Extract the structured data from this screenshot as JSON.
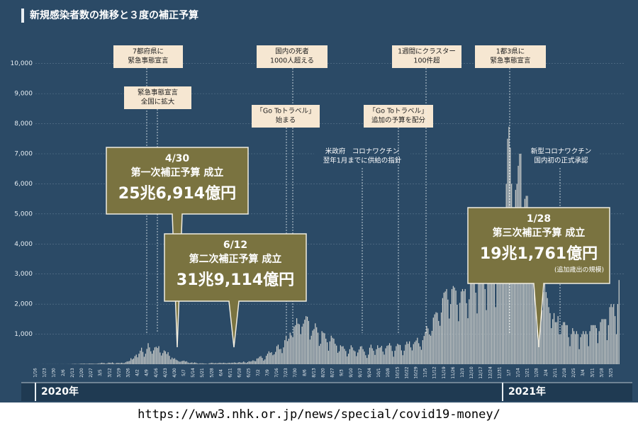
{
  "chart_data": {
    "type": "bar",
    "title": "新規感染者数の推移と３度の補正予算",
    "color": "#d4d4cf",
    "ylim": [
      0,
      10700
    ],
    "yticks": [
      {
        "value": 1000,
        "label": "1,000"
      },
      {
        "value": 2000,
        "label": "2,000"
      },
      {
        "value": 3000,
        "label": "3,000"
      },
      {
        "value": 4000,
        "label": "4,000"
      },
      {
        "value": 5000,
        "label": "5,000"
      },
      {
        "value": 6000,
        "label": "6,000"
      },
      {
        "value": 7000,
        "label": "7,000"
      },
      {
        "value": 8000,
        "label": "8,000"
      },
      {
        "value": 9000,
        "label": "9,000"
      },
      {
        "value": 10000,
        "label": "10,000"
      }
    ],
    "grid": true,
    "years": [
      "2020年",
      "2021年"
    ],
    "categories": [
      "1/16",
      null,
      null,
      null,
      null,
      null,
      null,
      "1/23",
      null,
      null,
      null,
      null,
      null,
      null,
      "1/30",
      null,
      null,
      null,
      null,
      null,
      null,
      "2/6",
      null,
      null,
      null,
      null,
      null,
      null,
      "2/13",
      null,
      null,
      null,
      null,
      null,
      null,
      "2/20",
      null,
      null,
      null,
      null,
      null,
      null,
      "2/27",
      null,
      null,
      null,
      null,
      null,
      null,
      "3/5",
      null,
      null,
      null,
      null,
      null,
      null,
      "3/12",
      null,
      null,
      null,
      null,
      null,
      null,
      "3/19",
      null,
      null,
      null,
      null,
      null,
      null,
      "3/26",
      null,
      null,
      null,
      null,
      null,
      null,
      "4/2",
      null,
      null,
      null,
      null,
      null,
      null,
      "4/9",
      null,
      null,
      null,
      null,
      null,
      null,
      "4/16",
      null,
      null,
      null,
      null,
      null,
      null,
      "4/23",
      null,
      null,
      null,
      null,
      null,
      null,
      "4/30",
      null,
      null,
      null,
      null,
      null,
      null,
      "5/7",
      null,
      null,
      null,
      null,
      null,
      null,
      "5/14",
      null,
      null,
      null,
      null,
      null,
      null,
      "5/21",
      null,
      null,
      null,
      null,
      null,
      null,
      "5/28",
      null,
      null,
      null,
      null,
      null,
      null,
      "6/4",
      null,
      null,
      null,
      null,
      null,
      null,
      "6/11",
      null,
      null,
      null,
      null,
      null,
      null,
      "6/18",
      null,
      null,
      null,
      null,
      null,
      null,
      "6/25",
      null,
      null,
      null,
      null,
      null,
      null,
      "7/2",
      null,
      null,
      null,
      null,
      null,
      null,
      "7/9",
      null,
      null,
      null,
      null,
      null,
      null,
      "7/16",
      null,
      null,
      null,
      null,
      null,
      null,
      "7/23",
      null,
      null,
      null,
      null,
      null,
      null,
      "7/30",
      null,
      null,
      null,
      null,
      null,
      null,
      "8/6",
      null,
      null,
      null,
      null,
      null,
      null,
      "8/13",
      null,
      null,
      null,
      null,
      null,
      null,
      "8/20",
      null,
      null,
      null,
      null,
      null,
      null,
      "8/27",
      null,
      null,
      null,
      null,
      null,
      null,
      "9/3",
      null,
      null,
      null,
      null,
      null,
      null,
      "9/10",
      null,
      null,
      null,
      null,
      null,
      null,
      "9/17",
      null,
      null,
      null,
      null,
      null,
      null,
      "9/24",
      null,
      null,
      null,
      null,
      null,
      null,
      "10/1",
      null,
      null,
      null,
      null,
      null,
      null,
      "10/8",
      null,
      null,
      null,
      null,
      null,
      null,
      "10/15",
      null,
      null,
      null,
      null,
      null,
      null,
      "10/22",
      null,
      null,
      null,
      null,
      null,
      null,
      "10/29",
      null,
      null,
      null,
      null,
      null,
      null,
      "11/5",
      null,
      null,
      null,
      null,
      null,
      null,
      "11/12",
      null,
      null,
      null,
      null,
      null,
      null,
      "11/19",
      null,
      null,
      null,
      null,
      null,
      null,
      "11/26",
      null,
      null,
      null,
      null,
      null,
      null,
      "12/3",
      null,
      null,
      null,
      null,
      null,
      null,
      "12/10",
      null,
      null,
      null,
      null,
      null,
      null,
      "12/17",
      null,
      null,
      null,
      null,
      null,
      null,
      "12/24",
      null,
      null,
      null,
      null,
      null,
      null,
      "12/31",
      null,
      null,
      null,
      null,
      null,
      null,
      "1/7",
      null,
      null,
      null,
      null,
      null,
      null,
      "1/14",
      null,
      null,
      null,
      null,
      null,
      null,
      "1/21",
      null,
      null,
      null,
      null,
      null,
      null,
      "1/28",
      null,
      null,
      null,
      null,
      null,
      null,
      "2/4",
      null,
      null,
      null,
      null,
      null,
      null,
      "2/11",
      null,
      null,
      null,
      null,
      null,
      null,
      "2/18",
      null,
      null,
      null,
      null,
      null,
      null,
      "2/25",
      null,
      null,
      null,
      null,
      null,
      null,
      "3/4",
      null,
      null,
      null,
      null,
      null,
      null,
      "3/11",
      null,
      null,
      null,
      null,
      null,
      null,
      "3/18",
      null,
      null,
      null,
      null,
      null,
      null,
      "3/25",
      null,
      null,
      null,
      null,
      null,
      null
    ],
    "values": [
      0,
      0,
      0,
      1,
      0,
      1,
      2,
      0,
      1,
      2,
      1,
      2,
      1,
      2,
      1,
      2,
      1,
      2,
      0,
      1,
      2,
      2,
      1,
      1,
      2,
      3,
      2,
      4,
      8,
      10,
      12,
      8,
      6,
      12,
      15,
      20,
      18,
      22,
      14,
      16,
      20,
      24,
      22,
      18,
      20,
      14,
      17,
      24,
      30,
      34,
      50,
      40,
      36,
      20,
      26,
      52,
      50,
      42,
      60,
      35,
      14,
      40,
      45,
      40,
      38,
      50,
      38,
      36,
      65,
      90,
      96,
      110,
      200,
      160,
      190,
      270,
      320,
      230,
      350,
      450,
      550,
      410,
      250,
      350,
      510,
      700,
      560,
      430,
      350,
      460,
      560,
      580,
      540,
      600,
      390,
      290,
      370,
      460,
      430,
      340,
      400,
      280,
      160,
      220,
      180,
      200,
      150,
      130,
      100,
      80,
      100,
      110,
      120,
      90,
      100,
      60,
      40,
      50,
      60,
      40,
      60,
      50,
      30,
      20,
      30,
      30,
      30,
      25,
      20,
      15,
      10,
      30,
      40,
      50,
      40,
      30,
      40,
      30,
      40,
      50,
      40,
      40,
      50,
      40,
      30,
      40,
      50,
      40,
      50,
      50,
      60,
      50,
      40,
      60,
      70,
      50,
      60,
      90,
      60,
      40,
      70,
      100,
      90,
      100,
      130,
      110,
      100,
      190,
      200,
      250,
      270,
      210,
      120,
      160,
      280,
      350,
      430,
      380,
      400,
      300,
      330,
      410,
      600,
      650,
      500,
      510,
      370,
      560,
      800,
      950,
      770,
      850,
      1050,
      960,
      900,
      1250,
      1300,
      1530,
      1350,
      1330,
      1000,
      1250,
      1350,
      1480,
      1600,
      1580,
      1440,
      820,
      950,
      1120,
      1170,
      1360,
      1230,
      1050,
      610,
      680,
      1100,
      1050,
      1030,
      850,
      730,
      450,
      760,
      950,
      880,
      850,
      680,
      620,
      380,
      430,
      630,
      590,
      600,
      510,
      440,
      260,
      350,
      500,
      630,
      560,
      460,
      430,
      270,
      390,
      490,
      590,
      600,
      500,
      420,
      300,
      210,
      320,
      550,
      650,
      530,
      450,
      310,
      500,
      630,
      540,
      560,
      610,
      420,
      320,
      530,
      610,
      630,
      700,
      620,
      440,
      250,
      450,
      600,
      680,
      650,
      640,
      460,
      300,
      450,
      650,
      750,
      680,
      760,
      560,
      460,
      670,
      740,
      790,
      880,
      700,
      590,
      480,
      800,
      940,
      1070,
      1270,
      1190,
      990,
      950,
      1110,
      1550,
      1660,
      1730,
      1710,
      1440,
      1280,
      1720,
      2200,
      2380,
      2420,
      2500,
      2150,
      1520,
      2000,
      2500,
      2600,
      2550,
      2450,
      1980,
      1430,
      2040,
      2420,
      2500,
      2430,
      2500,
      2030,
      1530,
      2160,
      2800,
      2800,
      3040,
      3000,
      2380,
      1690,
      2990,
      3100,
      3200,
      3000,
      2800,
      2500,
      1800,
      2800,
      3200,
      3700,
      3800,
      3800,
      3400,
      1900,
      3000,
      4500,
      4500,
      3200,
      3100,
      3200,
      4900,
      6000,
      7500,
      7900,
      7200,
      6000,
      4900,
      4300,
      5800,
      6000,
      6600,
      7000,
      7000,
      4600,
      3800,
      5500,
      5600,
      5600,
      5000,
      4900,
      4000,
      2800,
      4100,
      4000,
      3600,
      3600,
      3000,
      2500,
      1800,
      2400,
      3100,
      2400,
      2200,
      1900,
      1700,
      1200,
      1500,
      1700,
      1400,
      1400,
      1600,
      1000,
      1000,
      1300,
      1400,
      1400,
      1300,
      1300,
      900,
      600,
      1000,
      1200,
      1100,
      1000,
      1100,
      1000,
      500,
      900,
      1000,
      1100,
      1000,
      1100,
      1000,
      600,
      1100,
      1300,
      1300,
      1300,
      1300,
      1200,
      700,
      1100,
      1400,
      1500,
      1500,
      1500,
      1500,
      800,
      1300,
      1900,
      2000,
      1900,
      2000,
      1600,
      1000,
      2000,
      2800
    ],
    "annotations": [
      {
        "lines": [
          "7都府県に",
          "緊急事態宣言"
        ]
      },
      {
        "lines": [
          "緊急事態宣言",
          "全国に拡大"
        ]
      },
      {
        "lines": [
          "国内の死者",
          "1000人超える"
        ]
      },
      {
        "lines": [
          "「Go Toトラベル」",
          "始まる"
        ]
      },
      {
        "lines": [
          "米政府　コロナワクチン",
          "翌年1月までに供給の指針"
        ]
      },
      {
        "lines": [
          "「Go Toトラベル」",
          "追加の予算を配分"
        ]
      },
      {
        "lines": [
          "1週間にクラスター",
          "100件超"
        ]
      },
      {
        "lines": [
          "1都3県に",
          "緊急事態宣言"
        ]
      },
      {
        "lines": [
          "新型コロナワクチン",
          "国内初の正式承認"
        ]
      }
    ],
    "callouts": [
      {
        "date": "4/30",
        "label": "第一次補正予算 成立",
        "amount": "25兆6,914億円"
      },
      {
        "date": "6/12",
        "label": "第二次補正予算 成立",
        "amount": "31兆9,114億円"
      },
      {
        "date": "1/28",
        "label": "第三次補正予算 成立",
        "amount": "19兆1,761億円",
        "note": "(追加歳出の規模)"
      }
    ]
  },
  "source": "https://www3.nhk.or.jp/news/special/covid19-money/"
}
